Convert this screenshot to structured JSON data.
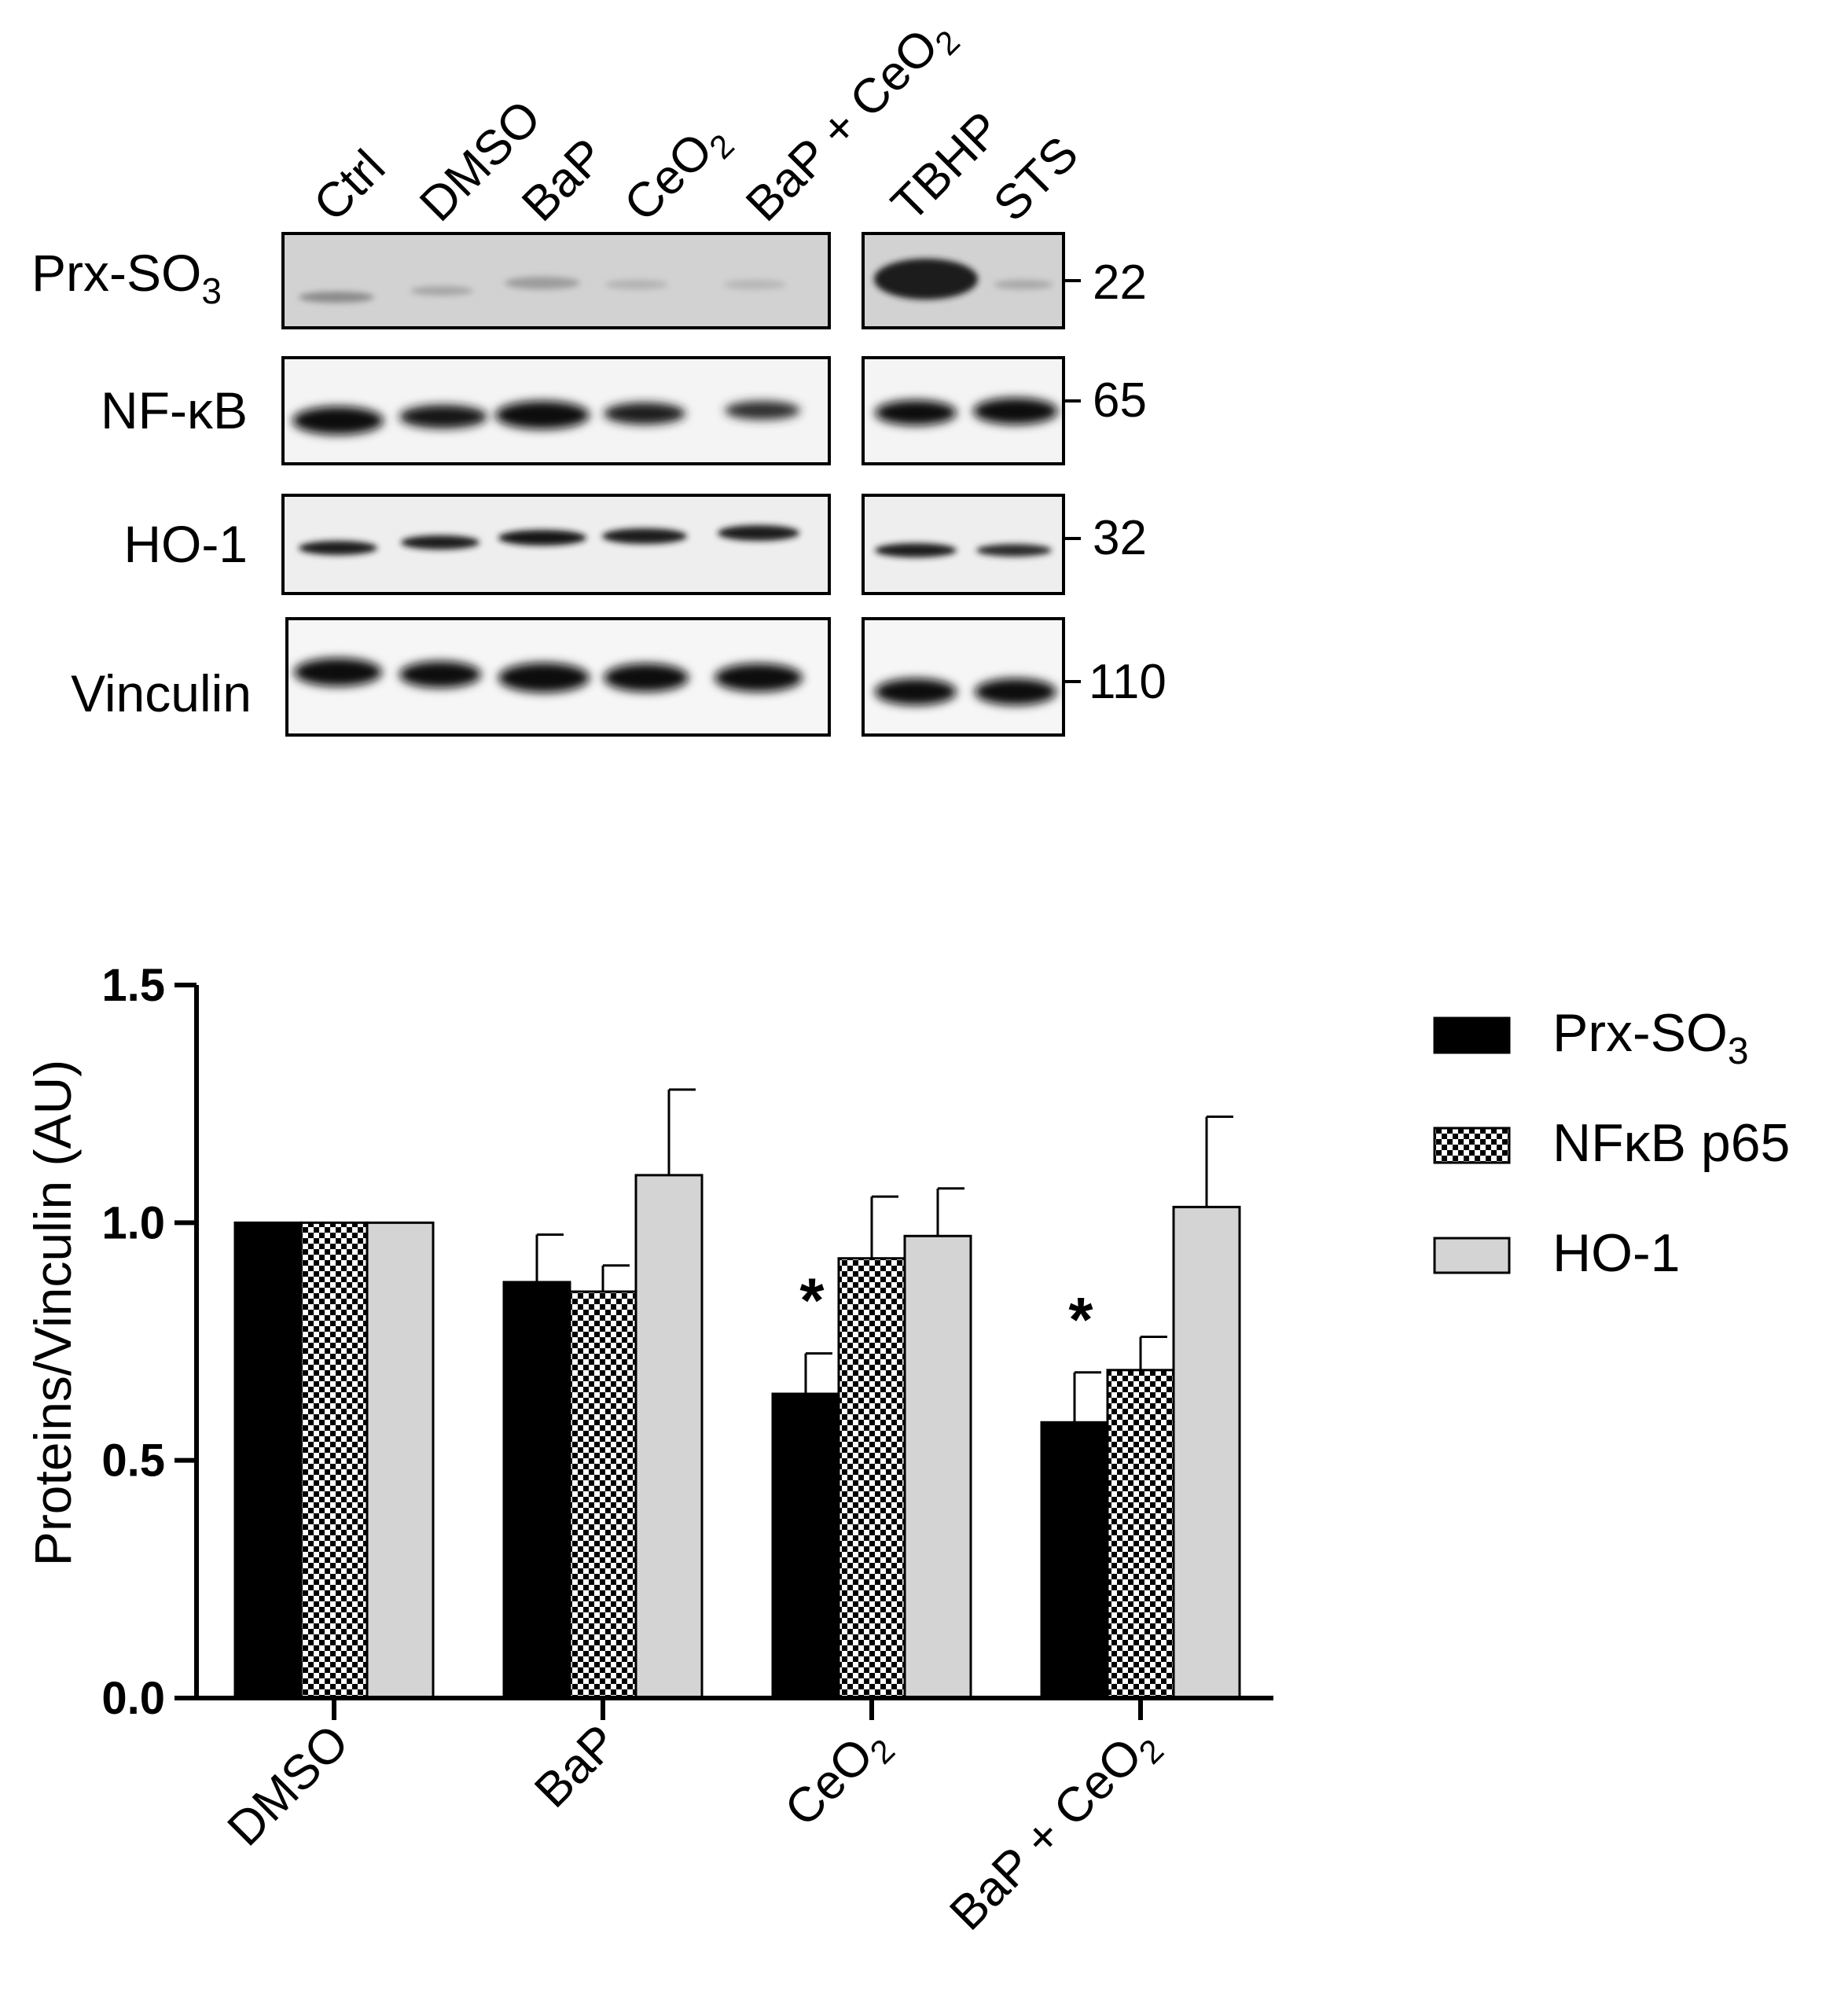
{
  "blot": {
    "lanes_left": [
      "Ctrl",
      "DMSO",
      "BaP",
      "CeO",
      "BaP + CeO"
    ],
    "lanes_right": [
      "TBHP",
      "STS"
    ],
    "subscript": "2",
    "rows": [
      {
        "label": "Prx-SO",
        "sub": "3",
        "mw": "22"
      },
      {
        "label": "NF-κB",
        "sub": "",
        "mw": "65"
      },
      {
        "label": "HO-1",
        "sub": "",
        "mw": "32"
      },
      {
        "label": "Vinculin",
        "sub": "",
        "mw": "110"
      }
    ]
  },
  "chart_data": {
    "type": "bar",
    "ylabel": "Proteins/Vinculin (AU)",
    "ylim": [
      0,
      1.5
    ],
    "yticks": [
      "0.0",
      "0.5",
      "1.0",
      "1.5"
    ],
    "categories": [
      "DMSO",
      "BaP",
      "CeO",
      "BaP + CeO"
    ],
    "category_subscripts": [
      "",
      "",
      "2",
      "2"
    ],
    "series": [
      {
        "name": "Prx-SO",
        "name_sub": "3",
        "pattern": "solid-black",
        "values": [
          1.0,
          0.875,
          0.64,
          0.58
        ],
        "errors": [
          0,
          0.1,
          0.085,
          0.105
        ]
      },
      {
        "name": "NFκB p65",
        "name_sub": "",
        "pattern": "checkered",
        "values": [
          1.0,
          0.855,
          0.925,
          0.69
        ],
        "errors": [
          0,
          0.055,
          0.13,
          0.07
        ]
      },
      {
        "name": "HO-1",
        "name_sub": "",
        "pattern": "light-gray",
        "values": [
          1.0,
          1.1,
          0.972,
          1.033
        ],
        "errors": [
          0,
          0.18,
          0.1,
          0.19
        ]
      }
    ],
    "significance": [
      "",
      "",
      "*",
      "*"
    ],
    "legend_position": "right"
  }
}
